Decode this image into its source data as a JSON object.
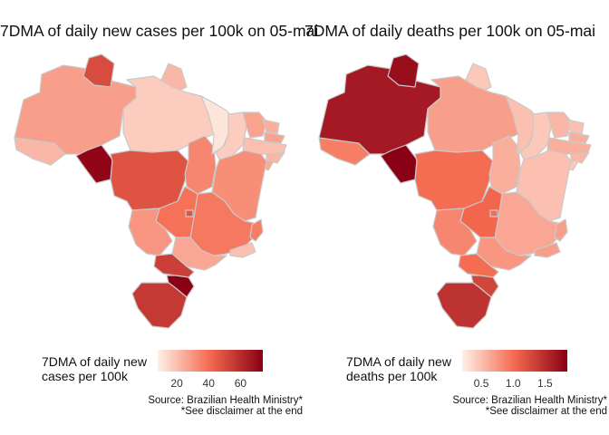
{
  "maps": [
    {
      "title": "7DMA of daily new cases per 100k on 05-mai",
      "legend_title": "7DMA of daily new\ncases per 100k",
      "legend_ticks": [
        "20",
        "40",
        "60"
      ],
      "tick_values": [
        20,
        40,
        60
      ],
      "scale_min": 8,
      "scale_max": 74,
      "source_line1": "Source: Brazilian Health Ministry*",
      "source_line2": "*See disclaimer at the end",
      "states": {
        "AC": 22,
        "AM": 28,
        "RR": 50,
        "AP": 22,
        "PA": 17,
        "RO": 72,
        "MT": 48,
        "TO": 34,
        "MA": 11,
        "PI": 17,
        "CE": 27,
        "RN": 24,
        "PB": 27,
        "PE": 20,
        "AL": 22,
        "SE": 25,
        "BA": 32,
        "MG": 37,
        "ES": 36,
        "RJ": 20,
        "SP": 26,
        "GO": 39,
        "DF": 47,
        "MS": 30,
        "PR": 54,
        "SC": 74,
        "RS": 56
      }
    },
    {
      "title": "7DMA of daily deaths per 100k on 05-mai",
      "legend_title": "7DMA of daily new\ndeaths per 100k",
      "legend_ticks": [
        "0.5",
        "1.0",
        "1.5"
      ],
      "tick_values": [
        0.5,
        1.0,
        1.5
      ],
      "scale_min": 0.2,
      "scale_max": 1.85,
      "source_line1": "Source: Brazilian Health Ministry*",
      "source_line2": "*See disclaimer at the end",
      "states": {
        "AC": 0.9,
        "AM": 1.65,
        "RR": 1.75,
        "AP": 0.45,
        "PA": 0.7,
        "RO": 1.85,
        "MT": 1.0,
        "TO": 0.6,
        "MA": 0.5,
        "PI": 0.45,
        "CE": 0.55,
        "RN": 0.5,
        "PB": 0.6,
        "PE": 0.6,
        "AL": 0.55,
        "SE": 0.45,
        "BA": 0.5,
        "MG": 0.65,
        "ES": 0.7,
        "RJ": 0.7,
        "SP": 0.75,
        "GO": 1.05,
        "DF": 1.0,
        "MS": 0.85,
        "PR": 1.0,
        "SC": 1.3,
        "RS": 1.45
      }
    }
  ],
  "colors": {
    "low": "#fff1e8",
    "mid": "#f4694e",
    "high": "#8a0015",
    "border": "#c9c9c9"
  }
}
